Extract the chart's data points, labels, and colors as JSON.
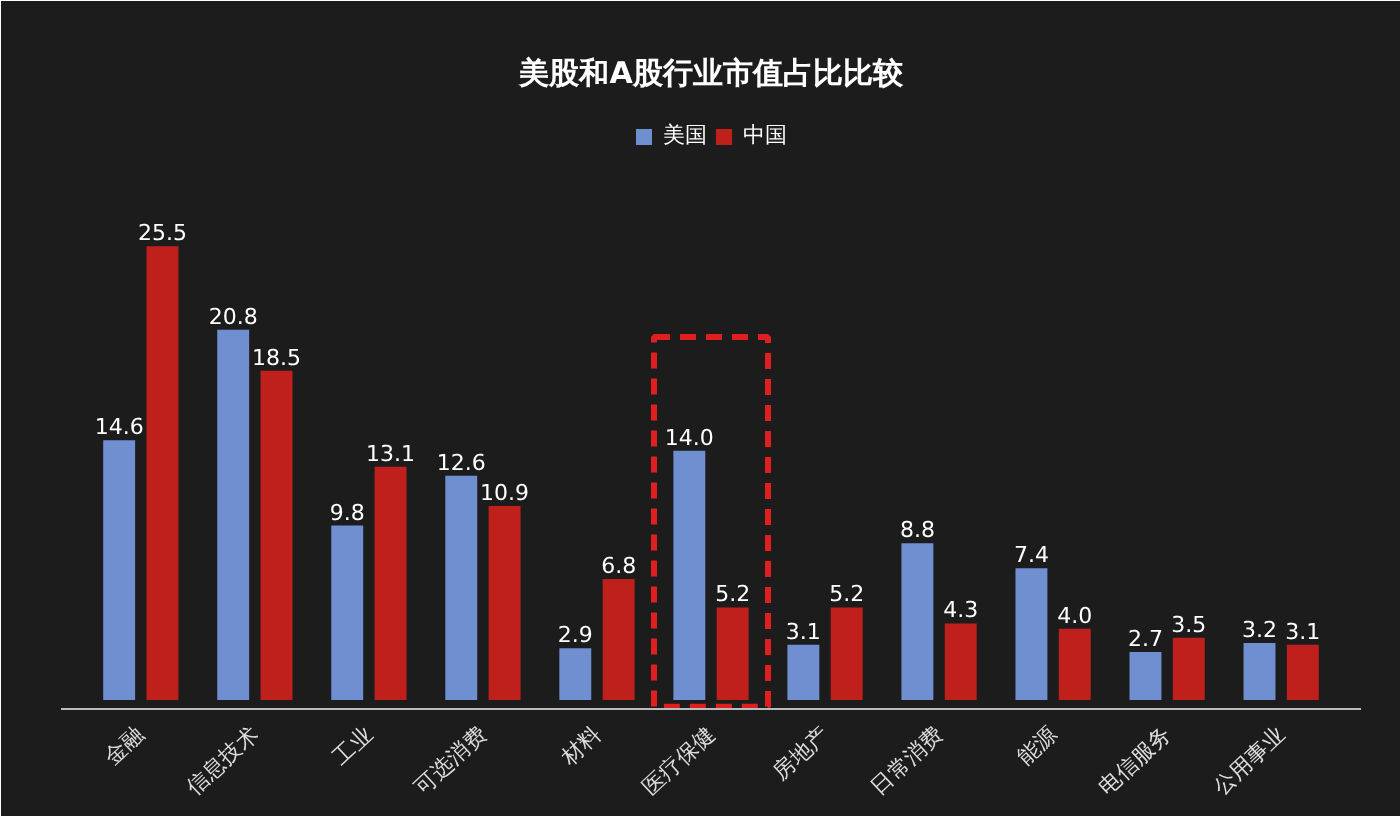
{
  "chart_data": {
    "type": "bar",
    "title": "美股和A股行业市值占比比较",
    "categories": [
      "金融",
      "信息技术",
      "工业",
      "可选消费",
      "材料",
      "医疗保健",
      "房地产",
      "日常消费",
      "能源",
      "电信服务",
      "公用事业"
    ],
    "series": [
      {
        "name": "美国",
        "color": "#6f8fd0",
        "values": [
          14.6,
          20.8,
          9.8,
          12.6,
          2.9,
          14.0,
          3.1,
          8.8,
          7.4,
          2.7,
          3.2
        ],
        "value_labels": [
          "14.6",
          "20.8",
          "9.8",
          "12.6",
          "2.9",
          "14.0",
          "3.1",
          "8.8",
          "7.4",
          "2.7",
          "3.2"
        ]
      },
      {
        "name": "中国",
        "color": "#c0201c",
        "values": [
          25.5,
          18.5,
          13.1,
          10.9,
          6.8,
          5.2,
          5.2,
          4.3,
          4.0,
          3.5,
          3.1
        ],
        "value_labels": [
          "25.5",
          "18.5",
          "13.1",
          "10.9",
          "6.8",
          "5.2",
          "5.2",
          "4.3",
          "4.0",
          "3.5",
          "3.1"
        ]
      }
    ],
    "legend": "top",
    "grid": false
  }
}
